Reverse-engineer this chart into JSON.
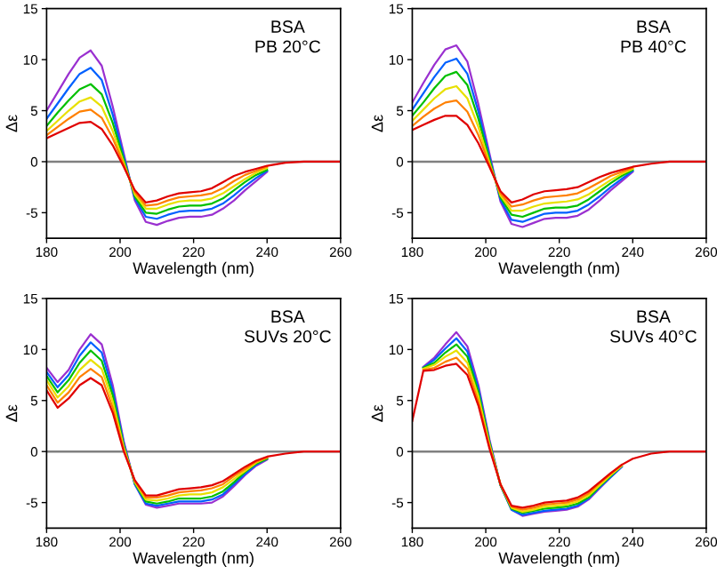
{
  "chart_data": [
    {
      "type": "line",
      "xlabel": "Wavelength (nm)",
      "ylabel": "Δε",
      "annotations": [
        "BSA\nPB 20°C"
      ],
      "xlim": [
        180,
        260
      ],
      "xticks": [
        180,
        200,
        220,
        240,
        260
      ],
      "ylim": [
        -7.5,
        15
      ],
      "yticks": [
        -5,
        0,
        5,
        10,
        15
      ],
      "grid": false,
      "marker": "none",
      "line_style": "solid",
      "ref_lines": [
        {
          "axis": "y",
          "value": 0,
          "color": "#808080"
        }
      ],
      "x": [
        180,
        183,
        186,
        189,
        192,
        195,
        198,
        201,
        204,
        207,
        210,
        213,
        216,
        219,
        222,
        225,
        228,
        231,
        234,
        237,
        240,
        245,
        250,
        255,
        260
      ],
      "series": [
        {
          "color": "#9a30d0",
          "values": [
            5.0,
            6.8,
            8.6,
            10.2,
            10.9,
            9.4,
            5.4,
            0.8,
            -3.8,
            -5.9,
            -6.2,
            -5.8,
            -5.5,
            -5.4,
            -5.4,
            -5.2,
            -4.6,
            -3.8,
            -2.8,
            -1.9,
            -1.0,
            null,
            null,
            null,
            null
          ]
        },
        {
          "color": "#0060ff",
          "values": [
            4.2,
            5.7,
            7.2,
            8.6,
            9.2,
            8.0,
            4.6,
            0.5,
            -3.6,
            -5.4,
            -5.6,
            -5.2,
            -4.9,
            -4.8,
            -4.8,
            -4.6,
            -4.1,
            -3.3,
            -2.4,
            -1.6,
            -0.9,
            null,
            null,
            null,
            null
          ]
        },
        {
          "color": "#00c000",
          "values": [
            3.5,
            4.8,
            6.0,
            7.1,
            7.6,
            6.6,
            3.8,
            0.2,
            -3.4,
            -5.0,
            -5.1,
            -4.7,
            -4.4,
            -4.3,
            -4.3,
            -4.1,
            -3.6,
            -2.8,
            -2.0,
            -1.3,
            -0.8,
            null,
            null,
            null,
            null
          ]
        },
        {
          "color": "#e8e000",
          "values": [
            3.0,
            4.0,
            5.0,
            5.9,
            6.3,
            5.4,
            3.0,
            -0.1,
            -3.2,
            -4.6,
            -4.6,
            -4.2,
            -3.9,
            -3.8,
            -3.8,
            -3.6,
            -3.1,
            -2.4,
            -1.7,
            -1.1,
            -0.6,
            null,
            null,
            null,
            null
          ]
        },
        {
          "color": "#ff8000",
          "values": [
            2.6,
            3.4,
            4.2,
            4.9,
            5.1,
            4.3,
            2.3,
            -0.3,
            -3.0,
            -4.3,
            -4.2,
            -3.8,
            -3.5,
            -3.4,
            -3.3,
            -3.1,
            -2.6,
            -1.9,
            -1.3,
            -0.9,
            -0.5,
            null,
            null,
            null,
            null
          ]
        },
        {
          "color": "#e00000",
          "values": [
            2.3,
            2.8,
            3.3,
            3.8,
            3.9,
            3.2,
            1.6,
            -0.5,
            -2.8,
            -4.0,
            -3.8,
            -3.4,
            -3.1,
            -3.0,
            -2.9,
            -2.6,
            -2.0,
            -1.4,
            -1.0,
            -0.7,
            -0.4,
            -0.1,
            0,
            0,
            0
          ]
        }
      ]
    },
    {
      "type": "line",
      "xlabel": "Wavelength (nm)",
      "ylabel": "Δε",
      "annotations": [
        "BSA\nPB 40°C"
      ],
      "xlim": [
        180,
        260
      ],
      "xticks": [
        180,
        200,
        220,
        240,
        260
      ],
      "ylim": [
        -7.5,
        15
      ],
      "yticks": [
        -5,
        0,
        5,
        10,
        15
      ],
      "grid": false,
      "marker": "none",
      "line_style": "solid",
      "ref_lines": [
        {
          "axis": "y",
          "value": 0,
          "color": "#808080"
        }
      ],
      "x": [
        180,
        183,
        186,
        189,
        192,
        195,
        198,
        201,
        204,
        207,
        210,
        213,
        216,
        219,
        222,
        225,
        228,
        231,
        234,
        237,
        240,
        245,
        250,
        255,
        260
      ],
      "series": [
        {
          "color": "#9a30d0",
          "values": [
            5.8,
            7.7,
            9.5,
            11.0,
            11.4,
            9.8,
            5.6,
            0.8,
            -3.9,
            -6.1,
            -6.4,
            -6.0,
            -5.6,
            -5.5,
            -5.5,
            -5.3,
            -4.7,
            -3.8,
            -2.8,
            -1.9,
            -1.0,
            null,
            null,
            null,
            null
          ]
        },
        {
          "color": "#0060ff",
          "values": [
            5.1,
            6.7,
            8.3,
            9.7,
            10.1,
            8.6,
            4.9,
            0.5,
            -3.7,
            -5.7,
            -5.9,
            -5.5,
            -5.1,
            -5.0,
            -5.0,
            -4.8,
            -4.2,
            -3.4,
            -2.5,
            -1.7,
            -0.9,
            null,
            null,
            null,
            null
          ]
        },
        {
          "color": "#00c000",
          "values": [
            4.5,
            5.8,
            7.2,
            8.4,
            8.8,
            7.5,
            4.2,
            0.2,
            -3.5,
            -5.2,
            -5.4,
            -5.0,
            -4.6,
            -4.5,
            -4.5,
            -4.3,
            -3.7,
            -2.9,
            -2.1,
            -1.4,
            -0.8,
            null,
            null,
            null,
            null
          ]
        },
        {
          "color": "#e8e000",
          "values": [
            4.0,
            5.1,
            6.2,
            7.1,
            7.4,
            6.2,
            3.4,
            -0.1,
            -3.3,
            -4.8,
            -4.8,
            -4.4,
            -4.1,
            -4.0,
            -3.9,
            -3.7,
            -3.2,
            -2.5,
            -1.8,
            -1.2,
            -0.7,
            null,
            null,
            null,
            null
          ]
        },
        {
          "color": "#ff8000",
          "values": [
            3.5,
            4.4,
            5.2,
            5.8,
            6.0,
            4.9,
            2.6,
            -0.3,
            -3.1,
            -4.4,
            -4.2,
            -3.8,
            -3.5,
            -3.4,
            -3.3,
            -3.1,
            -2.6,
            -2.0,
            -1.4,
            -1.0,
            -0.6,
            null,
            null,
            null,
            null
          ]
        },
        {
          "color": "#e00000",
          "values": [
            3.1,
            3.6,
            4.1,
            4.5,
            4.5,
            3.6,
            1.8,
            -0.5,
            -2.9,
            -4.0,
            -3.7,
            -3.2,
            -2.9,
            -2.8,
            -2.7,
            -2.5,
            -2.0,
            -1.5,
            -1.1,
            -0.8,
            -0.5,
            -0.2,
            0,
            0,
            0
          ]
        }
      ]
    },
    {
      "type": "line",
      "xlabel": "Wavelength (nm)",
      "ylabel": "Δε",
      "annotations": [
        "BSA\nSUVs 20°C"
      ],
      "xlim": [
        180,
        260
      ],
      "xticks": [
        180,
        200,
        220,
        240,
        260
      ],
      "ylim": [
        -7.5,
        15
      ],
      "yticks": [
        -5,
        0,
        5,
        10,
        15
      ],
      "grid": false,
      "marker": "none",
      "line_style": "solid",
      "ref_lines": [
        {
          "axis": "y",
          "value": 0,
          "color": "#808080"
        }
      ],
      "x": [
        180,
        183,
        186,
        189,
        192,
        195,
        198,
        201,
        204,
        207,
        210,
        213,
        216,
        219,
        222,
        225,
        228,
        231,
        234,
        237,
        240,
        245,
        250,
        255,
        260
      ],
      "series": [
        {
          "color": "#9a30d0",
          "values": [
            8.2,
            6.8,
            8.0,
            10.0,
            11.5,
            10.5,
            6.5,
            1.0,
            -3.2,
            -5.2,
            -5.5,
            -5.3,
            -5.1,
            -5.1,
            -5.1,
            -5.0,
            -4.4,
            -3.4,
            -2.3,
            -1.4,
            -0.8,
            null,
            null,
            null,
            null
          ]
        },
        {
          "color": "#0060ff",
          "values": [
            7.8,
            6.3,
            7.5,
            9.4,
            10.7,
            9.7,
            6.0,
            0.8,
            -3.2,
            -5.1,
            -5.3,
            -5.1,
            -4.9,
            -4.9,
            -4.9,
            -4.7,
            -4.2,
            -3.2,
            -2.2,
            -1.3,
            -0.7,
            null,
            null,
            null,
            null
          ]
        },
        {
          "color": "#00c000",
          "values": [
            7.4,
            5.8,
            7.0,
            8.7,
            9.9,
            8.9,
            5.5,
            0.6,
            -3.1,
            -4.9,
            -5.1,
            -4.9,
            -4.6,
            -4.6,
            -4.6,
            -4.4,
            -3.9,
            -3.0,
            -2.0,
            -1.2,
            -0.7,
            null,
            null,
            null,
            null
          ]
        },
        {
          "color": "#e8e000",
          "values": [
            7.0,
            5.3,
            6.4,
            8.0,
            9.0,
            8.1,
            4.9,
            0.4,
            -3.0,
            -4.7,
            -4.8,
            -4.6,
            -4.3,
            -4.2,
            -4.2,
            -4.0,
            -3.5,
            -2.7,
            -1.9,
            -1.1,
            -0.6,
            null,
            null,
            null,
            null
          ]
        },
        {
          "color": "#ff8000",
          "values": [
            6.5,
            4.8,
            5.8,
            7.3,
            8.1,
            7.3,
            4.3,
            0.2,
            -2.9,
            -4.5,
            -4.5,
            -4.3,
            -4.0,
            -3.9,
            -3.8,
            -3.6,
            -3.2,
            -2.4,
            -1.7,
            -1.0,
            -0.6,
            null,
            null,
            null,
            null
          ]
        },
        {
          "color": "#e00000",
          "values": [
            6.0,
            4.3,
            5.2,
            6.5,
            7.2,
            6.5,
            3.8,
            0.0,
            -2.8,
            -4.3,
            -4.3,
            -4.0,
            -3.7,
            -3.6,
            -3.5,
            -3.3,
            -2.9,
            -2.2,
            -1.5,
            -0.9,
            -0.5,
            -0.2,
            0,
            0,
            0
          ]
        }
      ]
    },
    {
      "type": "line",
      "xlabel": "Wavelength (nm)",
      "ylabel": "Δε",
      "annotations": [
        "BSA\nSUVs 40°C"
      ],
      "xlim": [
        180,
        260
      ],
      "xticks": [
        180,
        200,
        220,
        240,
        260
      ],
      "ylim": [
        -7.5,
        15
      ],
      "yticks": [
        -5,
        0,
        5,
        10,
        15
      ],
      "grid": false,
      "marker": "none",
      "line_style": "solid",
      "ref_lines": [
        {
          "axis": "y",
          "value": 0,
          "color": "#808080"
        }
      ],
      "x": [
        180,
        183,
        186,
        189,
        192,
        195,
        198,
        201,
        204,
        207,
        210,
        213,
        216,
        219,
        222,
        225,
        228,
        231,
        234,
        237,
        240,
        245,
        250,
        255,
        260
      ],
      "series": [
        {
          "color": "#9a30d0",
          "values": [
            null,
            8.3,
            9.2,
            10.5,
            11.7,
            10.3,
            6.5,
            1.2,
            -3.3,
            -5.7,
            -6.3,
            -6.1,
            -5.9,
            -5.8,
            -5.7,
            -5.4,
            -4.7,
            -3.6,
            -2.5,
            -1.5,
            null,
            null,
            null,
            null,
            null
          ]
        },
        {
          "color": "#0060ff",
          "values": [
            null,
            8.2,
            9.0,
            10.1,
            11.1,
            9.8,
            6.2,
            1.0,
            -3.3,
            -5.7,
            -6.2,
            -6.0,
            -5.8,
            -5.7,
            -5.6,
            -5.3,
            -4.6,
            -3.5,
            -2.5,
            -1.5,
            null,
            null,
            null,
            null,
            null
          ]
        },
        {
          "color": "#00c000",
          "values": [
            null,
            8.2,
            8.7,
            9.7,
            10.5,
            9.3,
            5.8,
            0.9,
            -3.3,
            -5.6,
            -6.0,
            -5.8,
            -5.6,
            -5.5,
            -5.4,
            -5.1,
            -4.5,
            -3.4,
            -2.4,
            -1.4,
            null,
            null,
            null,
            null,
            null
          ]
        },
        {
          "color": "#e8e000",
          "values": [
            null,
            8.1,
            8.5,
            9.3,
            9.9,
            8.7,
            5.4,
            0.7,
            -3.2,
            -5.5,
            -5.9,
            -5.7,
            -5.4,
            -5.3,
            -5.2,
            -4.9,
            -4.3,
            -3.3,
            -2.3,
            -1.4,
            null,
            null,
            null,
            null,
            null
          ]
        },
        {
          "color": "#ff8000",
          "values": [
            null,
            8.0,
            8.2,
            8.8,
            9.2,
            8.1,
            4.9,
            0.5,
            -3.2,
            -5.4,
            -5.7,
            -5.5,
            -5.2,
            -5.1,
            -5.0,
            -4.7,
            -4.1,
            -3.1,
            -2.2,
            -1.3,
            null,
            null,
            null,
            null,
            null
          ]
        },
        {
          "color": "#e00000",
          "values": [
            3.0,
            7.9,
            8.0,
            8.4,
            8.6,
            7.5,
            4.5,
            0.3,
            -3.2,
            -5.3,
            -5.5,
            -5.3,
            -5.0,
            -4.9,
            -4.8,
            -4.5,
            -3.9,
            -3.0,
            -2.1,
            -1.3,
            -0.7,
            -0.2,
            0,
            0,
            0
          ]
        }
      ]
    }
  ]
}
